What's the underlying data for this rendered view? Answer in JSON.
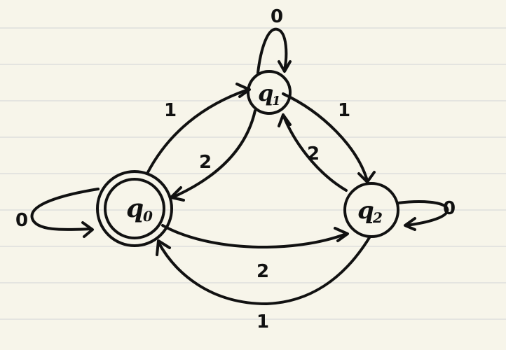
{
  "states": {
    "q0": {
      "label": "q",
      "sub": "0",
      "accepting": true
    },
    "q1": {
      "label": "q",
      "sub": "1",
      "accepting": false
    },
    "q2": {
      "label": "q",
      "sub": "2",
      "accepting": false
    }
  },
  "transitions": {
    "q0_q0": "0",
    "q1_q1": "0",
    "q2_q2": "0",
    "q0_q1": "1",
    "q1_q0": "2",
    "q1_q2": "1",
    "q2_q1": "2",
    "q0_q2": "2",
    "q2_q0": "1"
  },
  "colors": {
    "paper": "#f7f5ea",
    "rule": "#d9d9d9",
    "ink": "#111111"
  }
}
